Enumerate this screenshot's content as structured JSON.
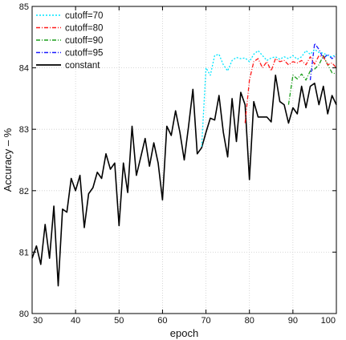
{
  "chart_data": {
    "type": "line",
    "title": "",
    "xlabel": "epoch",
    "ylabel": "Accuracy – %",
    "xlim": [
      30,
      100
    ],
    "ylim": [
      80,
      85
    ],
    "x_ticks": [
      "30",
      "40",
      "50",
      "60",
      "70",
      "80",
      "90",
      "100"
    ],
    "y_ticks": [
      "80",
      "81",
      "82",
      "83",
      "84",
      "85"
    ],
    "grid": true,
    "legend_position": "top-left",
    "series": [
      {
        "name": "cutoff=70",
        "color": "#00e5ff",
        "dash": "dotted",
        "x": [
          69,
          70,
          71,
          72,
          73,
          74,
          75,
          76,
          77,
          78,
          79,
          80,
          81,
          82,
          83,
          84,
          85,
          86,
          87,
          88,
          89,
          90,
          91,
          92,
          93,
          94,
          95,
          96,
          97,
          98,
          99,
          100
        ],
        "values": [
          82.72,
          84.0,
          83.88,
          84.2,
          84.22,
          84.05,
          83.95,
          84.12,
          84.17,
          84.15,
          84.16,
          84.1,
          84.22,
          84.28,
          84.2,
          84.12,
          84.16,
          84.18,
          84.14,
          84.18,
          84.15,
          84.2,
          84.14,
          84.18,
          84.28,
          84.22,
          84.3,
          84.25,
          84.24,
          84.2,
          84.18,
          84.22
        ]
      },
      {
        "name": "cutoff=80",
        "color": "#ff1a1a",
        "dash": "dashdot",
        "x": [
          79,
          80,
          81,
          82,
          83,
          84,
          85,
          86,
          87,
          88,
          89,
          90,
          91,
          92,
          93,
          94,
          95,
          96,
          97,
          98,
          99,
          100
        ],
        "values": [
          83.1,
          83.8,
          84.1,
          84.15,
          84.0,
          84.1,
          83.95,
          84.15,
          84.1,
          84.12,
          84.05,
          84.1,
          84.08,
          84.12,
          84.05,
          84.18,
          84.06,
          84.2,
          84.18,
          84.05,
          84.08,
          84.0
        ]
      },
      {
        "name": "cutoff=90",
        "color": "#1a9e1a",
        "dash": "dashdot",
        "x": [
          89,
          90,
          91,
          92,
          93,
          94,
          95,
          96,
          97,
          98,
          99,
          100
        ],
        "values": [
          83.4,
          83.88,
          83.82,
          83.9,
          83.8,
          83.95,
          83.98,
          84.05,
          84.2,
          84.05,
          83.92,
          83.9
        ]
      },
      {
        "name": "cutoff=95",
        "color": "#1a1aff",
        "dash": "dashdot",
        "x": [
          94,
          95,
          96,
          97,
          98,
          99,
          100
        ],
        "values": [
          83.8,
          84.4,
          84.3,
          84.15,
          84.22,
          84.15,
          84.2
        ]
      },
      {
        "name": "constant",
        "color": "#000000",
        "dash": "solid",
        "x": [
          30,
          31,
          32,
          33,
          34,
          35,
          36,
          37,
          38,
          39,
          40,
          41,
          42,
          43,
          44,
          45,
          46,
          47,
          48,
          49,
          50,
          51,
          52,
          53,
          54,
          55,
          56,
          57,
          58,
          59,
          60,
          61,
          62,
          63,
          64,
          65,
          66,
          67,
          68,
          69,
          70,
          71,
          72,
          73,
          74,
          75,
          76,
          77,
          78,
          79,
          80,
          81,
          82,
          83,
          84,
          85,
          86,
          87,
          88,
          89,
          90,
          91,
          92,
          93,
          94,
          95,
          96,
          97,
          98,
          99,
          100
        ],
        "values": [
          80.9,
          81.1,
          80.8,
          81.45,
          80.9,
          81.75,
          80.45,
          81.7,
          81.65,
          82.2,
          82.0,
          82.25,
          81.4,
          81.95,
          82.05,
          82.3,
          82.2,
          82.6,
          82.35,
          82.45,
          81.43,
          82.45,
          81.97,
          83.05,
          82.25,
          82.55,
          82.85,
          82.4,
          82.78,
          82.45,
          81.85,
          83.05,
          82.9,
          83.3,
          82.95,
          82.5,
          83.05,
          83.65,
          82.6,
          82.7,
          82.95,
          83.18,
          83.15,
          83.55,
          82.95,
          82.55,
          83.5,
          82.8,
          83.6,
          83.4,
          82.18,
          83.45,
          83.2,
          83.2,
          83.2,
          83.12,
          83.88,
          83.45,
          83.4,
          83.1,
          83.35,
          83.25,
          83.7,
          83.35,
          83.7,
          83.75,
          83.4,
          83.7,
          83.25,
          83.55,
          83.4
        ]
      }
    ]
  }
}
